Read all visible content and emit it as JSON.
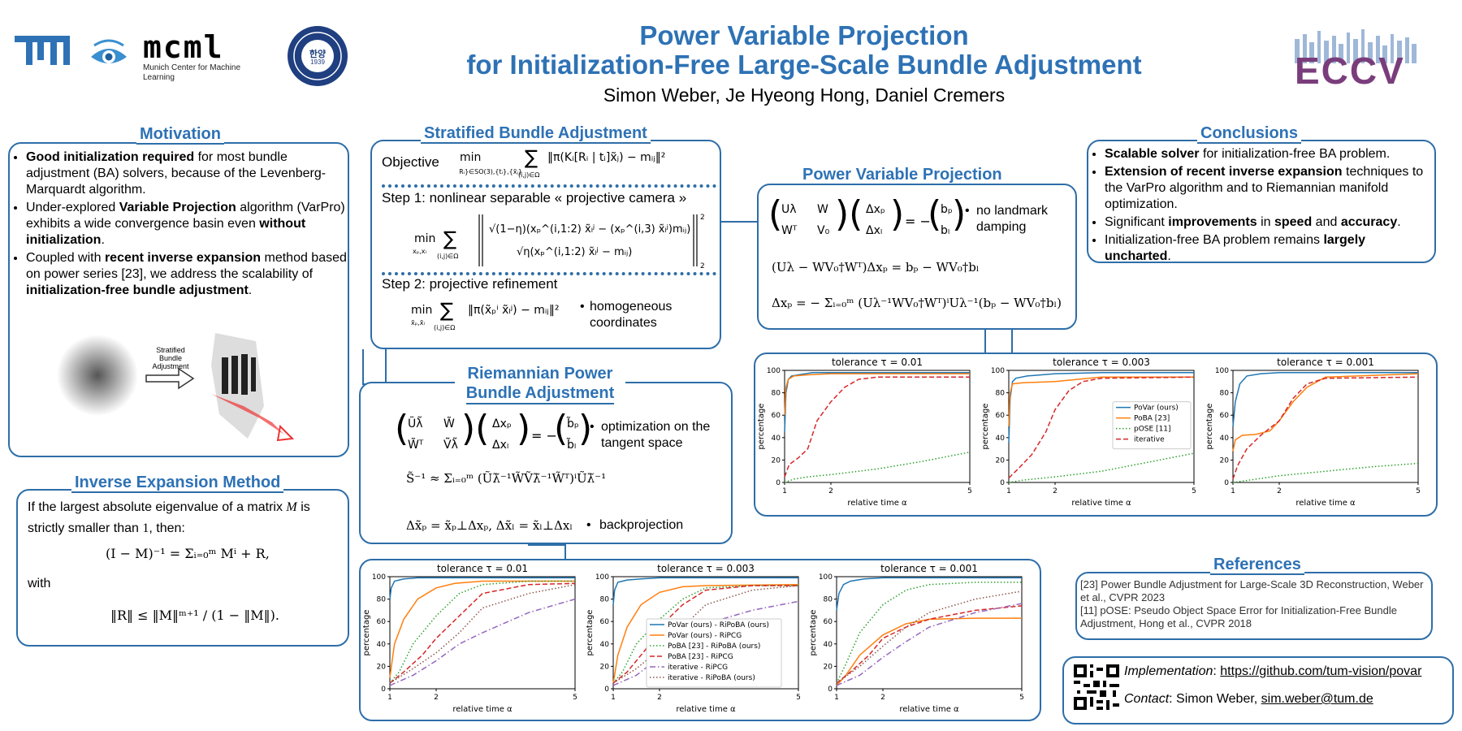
{
  "header": {
    "title_line1": "Power Variable Projection",
    "title_line2": "for Initialization-Free Large-Scale Bundle Adjustment",
    "authors": "Simon Weber, Je Hyeong Hong, Daniel Cremers",
    "logos": {
      "tum": "TUM",
      "mcml": "mcml",
      "mcml_sub": "Munich Center for Machine Learning",
      "hanyang_center": "한양",
      "hanyang_year": "1939",
      "eccv": "ECCV"
    }
  },
  "motivation": {
    "title": "Motivation",
    "bullets": [
      {
        "bold": "Good initialization required",
        "rest": " for most bundle adjustment (BA) solvers, because of the Levenberg-Marquardt algorithm."
      },
      {
        "pre": "Under-explored ",
        "bold": "Variable Projection",
        "rest": " algorithm (VarPro) exhibits a wide convergence basin even ",
        "bold2": "without initialization",
        "rest2": "."
      },
      {
        "pre": "Coupled with ",
        "bold": "recent inverse expansion",
        "rest": " method based on power series [23], we address the scalability of ",
        "bold2": "initialization-free bundle adjustment",
        "rest2": "."
      }
    ],
    "figure_arrow_label": [
      "Stratified",
      "Bundle",
      "Adjustment"
    ]
  },
  "inverse_expansion": {
    "title": "Inverse Expansion Method",
    "text1": "If the largest absolute eigenvalue of a matrix",
    "text1_var": "M",
    "text1_end": " is strictly smaller than ",
    "text1_num": "1",
    "text1_tail": ", then:",
    "eq1": "(I − M)⁻¹ = Σᵢ₌₀ᵐ Mⁱ + R,",
    "with": "with",
    "eq2": "‖R‖ ≤ ‖M‖ᵐ⁺¹ / (1 − ‖M‖)."
  },
  "stratified": {
    "title": "Stratified Bundle Adjustment",
    "objective_label": "Objective",
    "step1": "Step 1: nonlinear separable « projective camera »",
    "step2": "Step 2: projective refinement",
    "step2_note": "homogeneous coordinates"
  },
  "riemannian": {
    "title_line1": "Riemannian Power",
    "title_line2": "Bundle Adjustment",
    "note1": "optimization on the tangent space",
    "note2": "backprojection"
  },
  "pvp": {
    "title": "Power Variable Projection",
    "note1": "no landmark damping"
  },
  "conclusions": {
    "title": "Conclusions",
    "bullets": [
      {
        "bold": "Scalable solver",
        "rest": " for initialization-free BA problem."
      },
      {
        "bold": "Extension of recent inverse expansion",
        "rest": " techniques to the VarPro algorithm and to Riemannian manifold optimization."
      },
      {
        "pre": "Significant ",
        "bold": "improvements",
        "mid": " in ",
        "bold2": "speed",
        "mid2": " and ",
        "bold3": "accuracy",
        "rest": "."
      },
      {
        "pre": "Initialization-free BA problem remains ",
        "bold": "largely uncharted",
        "rest": "."
      }
    ]
  },
  "references": {
    "title": "References",
    "items": [
      "[23] Power Bundle Adjustment for Large-Scale 3D Reconstruction, Weber et al., CVPR 2023",
      "[11] pOSE: Pseudo Object Space Error for Initialization-Free Bundle Adjustment, Hong et al., CVPR 2018"
    ]
  },
  "contact": {
    "impl_label": "Implementation",
    "impl_url": "https://github.com/tum-vision/povar",
    "contact_label": "Contact",
    "contact_name": "Simon Weber, ",
    "contact_email": "sim.weber@tum.de"
  },
  "chart_data": [
    {
      "type": "line",
      "group": "top",
      "title": "tolerance τ = 0.01",
      "xlabel": "relative time α",
      "ylabel": "percentage",
      "xlim": [
        1,
        5
      ],
      "ylim": [
        0,
        100
      ],
      "xticks": [
        1,
        2,
        5
      ],
      "yticks": [
        0,
        20,
        40,
        60,
        80,
        100
      ],
      "series": [
        {
          "name": "PoVar (ours)",
          "color": "#1f77b4",
          "style": "solid",
          "x": [
            1,
            1.03,
            1.08,
            1.15,
            1.3,
            1.6,
            2,
            3,
            5
          ],
          "y": [
            45,
            80,
            92,
            95,
            96,
            98,
            98,
            98,
            98
          ]
        },
        {
          "name": "PoBA [23]",
          "color": "#ff7f0e",
          "style": "solid",
          "x": [
            1,
            1.03,
            1.08,
            1.2,
            1.5,
            2,
            3,
            5
          ],
          "y": [
            60,
            85,
            92,
            95,
            96,
            97,
            97,
            97
          ]
        },
        {
          "name": "pOSE [11]",
          "color": "#2ca02c",
          "style": "dotted",
          "x": [
            1,
            1.2,
            1.5,
            2,
            3,
            4,
            5
          ],
          "y": [
            0,
            3,
            5,
            7,
            12,
            19,
            27
          ]
        },
        {
          "name": "iterative",
          "color": "#d62728",
          "style": "dashed",
          "x": [
            1,
            1.1,
            1.3,
            1.5,
            1.7,
            2,
            2.3,
            2.6,
            3,
            5
          ],
          "y": [
            5,
            16,
            22,
            30,
            55,
            72,
            85,
            92,
            94,
            94
          ]
        }
      ]
    },
    {
      "type": "line",
      "group": "top",
      "title": "tolerance τ = 0.003",
      "xlabel": "relative time α",
      "ylabel": "percentage",
      "xlim": [
        1,
        5
      ],
      "ylim": [
        0,
        100
      ],
      "xticks": [
        1,
        2,
        5
      ],
      "yticks": [
        0,
        20,
        40,
        60,
        80,
        100
      ],
      "legend": "center-right",
      "series": [
        {
          "name": "PoVar (ours)",
          "color": "#1f77b4",
          "style": "solid",
          "x": [
            1,
            1.03,
            1.08,
            1.15,
            1.4,
            2,
            3,
            5
          ],
          "y": [
            35,
            75,
            90,
            93,
            95,
            97,
            98,
            98
          ]
        },
        {
          "name": "PoBA [23]",
          "color": "#ff7f0e",
          "style": "solid",
          "x": [
            1,
            1.03,
            1.08,
            1.3,
            2,
            2.5,
            3,
            5
          ],
          "y": [
            50,
            80,
            88,
            89,
            90,
            92,
            94,
            94
          ]
        },
        {
          "name": "pOSE [11]",
          "color": "#2ca02c",
          "style": "dotted",
          "x": [
            1,
            1.3,
            2,
            3,
            4,
            5
          ],
          "y": [
            0,
            2,
            5,
            10,
            18,
            26
          ]
        },
        {
          "name": "iterative",
          "color": "#d62728",
          "style": "dashed",
          "x": [
            1,
            1.2,
            1.5,
            1.8,
            2,
            2.3,
            2.6,
            3,
            5
          ],
          "y": [
            4,
            12,
            25,
            45,
            65,
            82,
            90,
            93,
            94
          ]
        }
      ]
    },
    {
      "type": "line",
      "group": "top",
      "title": "tolerance τ = 0.001",
      "xlabel": "relative time α",
      "ylabel": "percentage",
      "xlim": [
        1,
        5
      ],
      "ylim": [
        0,
        100
      ],
      "xticks": [
        1,
        2,
        5
      ],
      "yticks": [
        0,
        20,
        40,
        60,
        80,
        100
      ],
      "series": [
        {
          "name": "PoVar (ours)",
          "color": "#1f77b4",
          "style": "solid",
          "x": [
            1,
            1.05,
            1.15,
            1.3,
            1.6,
            2,
            3,
            5
          ],
          "y": [
            50,
            72,
            88,
            95,
            97,
            98,
            98,
            98
          ]
        },
        {
          "name": "PoBA [23]",
          "color": "#ff7f0e",
          "style": "solid",
          "x": [
            1,
            1.05,
            1.2,
            1.5,
            1.8,
            2,
            2.3,
            2.6,
            3,
            5
          ],
          "y": [
            28,
            38,
            42,
            43,
            46,
            55,
            72,
            85,
            94,
            97
          ]
        },
        {
          "name": "pOSE [11]",
          "color": "#2ca02c",
          "style": "dotted",
          "x": [
            1,
            1.5,
            2,
            3,
            4,
            5
          ],
          "y": [
            0,
            3,
            6,
            10,
            14,
            17
          ]
        },
        {
          "name": "iterative",
          "color": "#d62728",
          "style": "dashed",
          "x": [
            1,
            1.1,
            1.3,
            1.6,
            2,
            2.3,
            2.6,
            3,
            5
          ],
          "y": [
            3,
            15,
            30,
            42,
            55,
            75,
            88,
            93,
            94
          ]
        }
      ]
    },
    {
      "type": "line",
      "group": "bottom",
      "title": "tolerance τ = 0.01",
      "xlabel": "relative time α",
      "ylabel": "percentage",
      "xlim": [
        1,
        5
      ],
      "ylim": [
        0,
        100
      ],
      "xticks": [
        1,
        2,
        5
      ],
      "yticks": [
        0,
        20,
        40,
        60,
        80,
        100
      ],
      "series": [
        {
          "name": "PoVar (ours) - RiPoBA (ours)",
          "color": "#1f77b4",
          "style": "solid",
          "x": [
            1,
            1.03,
            1.1,
            1.3,
            1.6,
            2,
            3,
            5
          ],
          "y": [
            80,
            90,
            96,
            98,
            99,
            99,
            99,
            99
          ]
        },
        {
          "name": "PoVar (ours) - RiPCG",
          "color": "#ff7f0e",
          "style": "solid",
          "x": [
            1,
            1.1,
            1.3,
            1.6,
            2,
            2.4,
            3,
            5
          ],
          "y": [
            10,
            40,
            62,
            80,
            90,
            94,
            96,
            96
          ]
        },
        {
          "name": "PoBA [23] - RiPoBA (ours)",
          "color": "#2ca02c",
          "style": "dotted",
          "x": [
            1,
            1.2,
            1.5,
            2,
            2.5,
            3,
            4,
            5
          ],
          "y": [
            5,
            15,
            40,
            65,
            85,
            93,
            96,
            96
          ]
        },
        {
          "name": "PoBA [23] - RiPCG",
          "color": "#d62728",
          "style": "dashed",
          "x": [
            1,
            1.3,
            1.7,
            2,
            2.5,
            3,
            4,
            5
          ],
          "y": [
            5,
            15,
            30,
            45,
            65,
            85,
            93,
            94
          ]
        },
        {
          "name": "iterative - RiPCG",
          "color": "#9467bd",
          "style": "dashdot",
          "x": [
            1,
            1.5,
            2,
            2.5,
            3,
            4,
            5
          ],
          "y": [
            3,
            12,
            25,
            40,
            50,
            68,
            80
          ]
        },
        {
          "name": "iterative - RiPoBA (ours)",
          "color": "#8c564b",
          "style": "dotted",
          "x": [
            1,
            1.5,
            2,
            2.5,
            3,
            4,
            5
          ],
          "y": [
            5,
            18,
            32,
            50,
            72,
            85,
            93
          ]
        }
      ]
    },
    {
      "type": "line",
      "group": "bottom",
      "title": "tolerance τ = 0.003",
      "xlabel": "relative time α",
      "ylabel": "percentage",
      "xlim": [
        1,
        5
      ],
      "ylim": [
        0,
        100
      ],
      "xticks": [
        1,
        2,
        5
      ],
      "yticks": [
        0,
        20,
        40,
        60,
        80,
        100
      ],
      "legend": "lower-center",
      "series": [
        {
          "name": "PoVar (ours) - RiPoBA (ours)",
          "color": "#1f77b4",
          "style": "solid",
          "x": [
            1,
            1.03,
            1.1,
            1.3,
            1.6,
            2,
            3,
            5
          ],
          "y": [
            75,
            88,
            95,
            97,
            98,
            99,
            99,
            99
          ]
        },
        {
          "name": "PoVar (ours) - RiPCG",
          "color": "#ff7f0e",
          "style": "solid",
          "x": [
            1,
            1.1,
            1.3,
            1.6,
            2,
            2.5,
            3,
            5
          ],
          "y": [
            5,
            30,
            55,
            75,
            86,
            91,
            92,
            93
          ]
        },
        {
          "name": "PoBA [23] - RiPoBA (ours)",
          "color": "#2ca02c",
          "style": "dotted",
          "x": [
            1,
            1.2,
            1.5,
            2,
            2.5,
            3,
            4,
            5
          ],
          "y": [
            5,
            15,
            40,
            62,
            80,
            90,
            92,
            92
          ]
        },
        {
          "name": "PoBA [23] - RiPCG",
          "color": "#d62728",
          "style": "dashed",
          "x": [
            1,
            1.3,
            1.7,
            2,
            2.5,
            3,
            4,
            5
          ],
          "y": [
            5,
            15,
            35,
            55,
            75,
            88,
            92,
            92
          ]
        },
        {
          "name": "iterative - RiPCG",
          "color": "#9467bd",
          "style": "dashdot",
          "x": [
            1,
            1.5,
            2,
            2.5,
            3,
            4,
            5
          ],
          "y": [
            3,
            12,
            28,
            45,
            58,
            70,
            78
          ]
        },
        {
          "name": "iterative - RiPoBA (ours)",
          "color": "#8c564b",
          "style": "dotted",
          "x": [
            1,
            1.5,
            2,
            2.5,
            3,
            4,
            5
          ],
          "y": [
            5,
            18,
            35,
            55,
            75,
            88,
            92
          ]
        }
      ]
    },
    {
      "type": "line",
      "group": "bottom",
      "title": "tolerance τ = 0.001",
      "xlabel": "relative time α",
      "ylabel": "percentage",
      "xlim": [
        1,
        5
      ],
      "ylim": [
        0,
        100
      ],
      "xticks": [
        1,
        2,
        5
      ],
      "yticks": [
        0,
        20,
        40,
        60,
        80,
        100
      ],
      "series": [
        {
          "name": "PoVar (ours) - RiPoBA (ours)",
          "color": "#1f77b4",
          "style": "solid",
          "x": [
            1,
            1.05,
            1.15,
            1.3,
            1.6,
            2,
            3,
            5
          ],
          "y": [
            70,
            85,
            93,
            96,
            98,
            99,
            99,
            99
          ]
        },
        {
          "name": "PoVar (ours) - RiPCG",
          "color": "#ff7f0e",
          "style": "solid",
          "x": [
            1,
            1.2,
            1.5,
            2,
            2.5,
            3,
            4,
            5
          ],
          "y": [
            3,
            12,
            30,
            48,
            58,
            62,
            63,
            63
          ]
        },
        {
          "name": "PoBA [23] - RiPoBA (ours)",
          "color": "#2ca02c",
          "style": "dotted",
          "x": [
            1,
            1.2,
            1.5,
            2,
            2.5,
            3,
            4,
            5
          ],
          "y": [
            5,
            22,
            50,
            75,
            88,
            93,
            95,
            95
          ]
        },
        {
          "name": "PoBA [23] - RiPCG",
          "color": "#d62728",
          "style": "dashed",
          "x": [
            1,
            1.3,
            1.7,
            2,
            2.5,
            3,
            4,
            5
          ],
          "y": [
            5,
            15,
            30,
            45,
            55,
            62,
            70,
            74
          ]
        },
        {
          "name": "iterative - RiPCG",
          "color": "#9467bd",
          "style": "dashdot",
          "x": [
            1,
            1.5,
            2,
            2.5,
            3,
            4,
            5
          ],
          "y": [
            3,
            12,
            28,
            42,
            55,
            68,
            76
          ]
        },
        {
          "name": "iterative - RiPoBA (ours)",
          "color": "#8c564b",
          "style": "dotted",
          "x": [
            1,
            1.5,
            2,
            2.5,
            3,
            4,
            5
          ],
          "y": [
            5,
            20,
            38,
            55,
            68,
            80,
            87
          ]
        }
      ]
    }
  ]
}
